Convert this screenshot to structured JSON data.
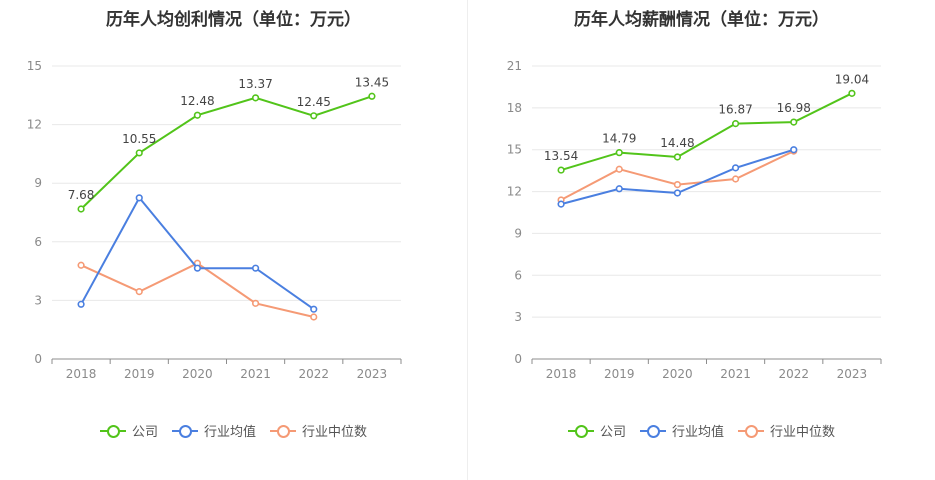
{
  "chart_data": [
    {
      "type": "line",
      "title": "历年人均创利情况（单位：万元）",
      "categories": [
        "2018",
        "2019",
        "2020",
        "2021",
        "2022",
        "2023"
      ],
      "ylim": [
        0,
        15
      ],
      "yticks": [
        0,
        3,
        6,
        9,
        12,
        15
      ],
      "grid": true,
      "legend_position": "bottom",
      "series": [
        {
          "name": "公司",
          "color": "#52c41a",
          "values": [
            7.68,
            10.55,
            12.48,
            13.37,
            12.45,
            13.45
          ],
          "show_labels": true
        },
        {
          "name": "行业均值",
          "color": "#4a7fe0",
          "values": [
            2.8,
            8.25,
            4.65,
            4.65,
            2.55,
            null
          ],
          "show_labels": false
        },
        {
          "name": "行业中位数",
          "color": "#f59a75",
          "values": [
            4.8,
            3.45,
            4.9,
            2.85,
            2.15,
            null
          ],
          "show_labels": false
        }
      ]
    },
    {
      "type": "line",
      "title": "历年人均薪酬情况（单位：万元）",
      "categories": [
        "2018",
        "2019",
        "2020",
        "2021",
        "2022",
        "2023"
      ],
      "ylim": [
        0,
        21
      ],
      "yticks": [
        0,
        3,
        6,
        9,
        12,
        15,
        18,
        21
      ],
      "grid": true,
      "legend_position": "bottom",
      "series": [
        {
          "name": "公司",
          "color": "#52c41a",
          "values": [
            13.54,
            14.79,
            14.48,
            16.87,
            16.98,
            19.04
          ],
          "show_labels": true
        },
        {
          "name": "行业均值",
          "color": "#4a7fe0",
          "values": [
            11.1,
            12.2,
            11.9,
            13.7,
            15.0,
            null
          ],
          "show_labels": false
        },
        {
          "name": "行业中位数",
          "color": "#f59a75",
          "values": [
            11.4,
            13.6,
            12.5,
            12.9,
            14.9,
            null
          ],
          "show_labels": false
        }
      ]
    }
  ]
}
